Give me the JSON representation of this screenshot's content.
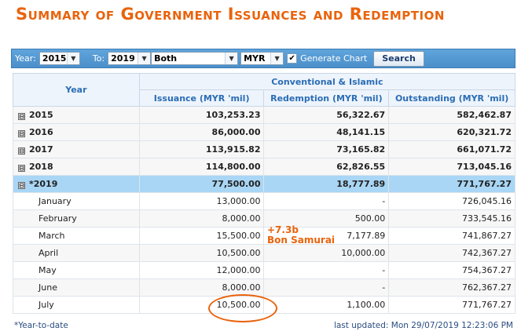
{
  "title": "Summary of Government Issuances and Redemption",
  "filters": {
    "year_label": "Year:",
    "from_year": "2015",
    "to_label": "To:",
    "to_year": "2019",
    "type": "Both",
    "currency": "MYR",
    "generate_chart_checked": "✔",
    "generate_chart_label": "Generate Chart",
    "search_label": "Search"
  },
  "table": {
    "year_header": "Year",
    "group_header": "Conventional & Islamic",
    "columns": [
      "Issuance (MYR 'mil)",
      "Redemption (MYR 'mil)",
      "Outstanding (MYR 'mil)"
    ],
    "years": [
      {
        "year": "2015",
        "issuance": "103,253.23",
        "redemption": "56,322.67",
        "outstanding": "582,462.87"
      },
      {
        "year": "2016",
        "issuance": "86,000.00",
        "redemption": "48,141.15",
        "outstanding": "620,321.72"
      },
      {
        "year": "2017",
        "issuance": "113,915.82",
        "redemption": "73,165.82",
        "outstanding": "661,071.72"
      },
      {
        "year": "2018",
        "issuance": "114,800.00",
        "redemption": "62,826.55",
        "outstanding": "713,045.16"
      },
      {
        "year": "*2019",
        "issuance": "77,500.00",
        "redemption": "18,777.89",
        "outstanding": "771,767.27"
      }
    ],
    "months": [
      {
        "month": "January",
        "issuance": "13,000.00",
        "redemption": "-",
        "outstanding": "726,045.16"
      },
      {
        "month": "February",
        "issuance": "8,000.00",
        "redemption": "500.00",
        "outstanding": "733,545.16"
      },
      {
        "month": "March",
        "issuance": "15,500.00",
        "redemption": "7,177.89",
        "outstanding": "741,867.27"
      },
      {
        "month": "April",
        "issuance": "10,500.00",
        "redemption": "10,000.00",
        "outstanding": "742,367.27"
      },
      {
        "month": "May",
        "issuance": "12,000.00",
        "redemption": "-",
        "outstanding": "754,367.27"
      },
      {
        "month": "June",
        "issuance": "8,000.00",
        "redemption": "-",
        "outstanding": "762,367.27"
      },
      {
        "month": "July",
        "issuance": "10,500.00",
        "redemption": "1,100.00",
        "outstanding": "771,767.27"
      }
    ]
  },
  "annotation": {
    "line1": "+7.3b",
    "line2": "Bon Samurai"
  },
  "footnote": "*Year-to-date",
  "last_updated": "last updated: Mon 29/07/2019 12:23:06 PM",
  "icons": {
    "collapse": "⊟",
    "dropdown": "▼"
  },
  "colors": {
    "accent": "#e9630c",
    "toolbar": "#4b8fca",
    "selected_row": "#a9d6f5",
    "header_text": "#2a6db5"
  }
}
